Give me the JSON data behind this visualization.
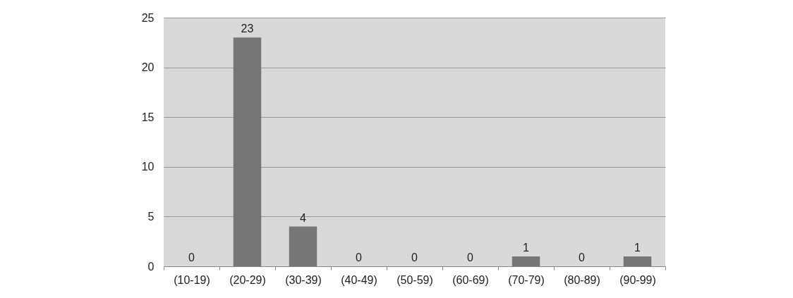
{
  "chart_data": {
    "type": "bar",
    "categories": [
      "(10-19)",
      "(20-29)",
      "(30-39)",
      "(40-49)",
      "(50-59)",
      "(60-69)",
      "(70-79)",
      "(80-89)",
      "(90-99)"
    ],
    "values": [
      0,
      23,
      4,
      0,
      0,
      0,
      1,
      0,
      1
    ],
    "color": "#767676",
    "ylim": [
      0,
      25
    ],
    "yticks": [
      0,
      5,
      10,
      15,
      20,
      25
    ],
    "grid": "y",
    "data_labels": true
  }
}
